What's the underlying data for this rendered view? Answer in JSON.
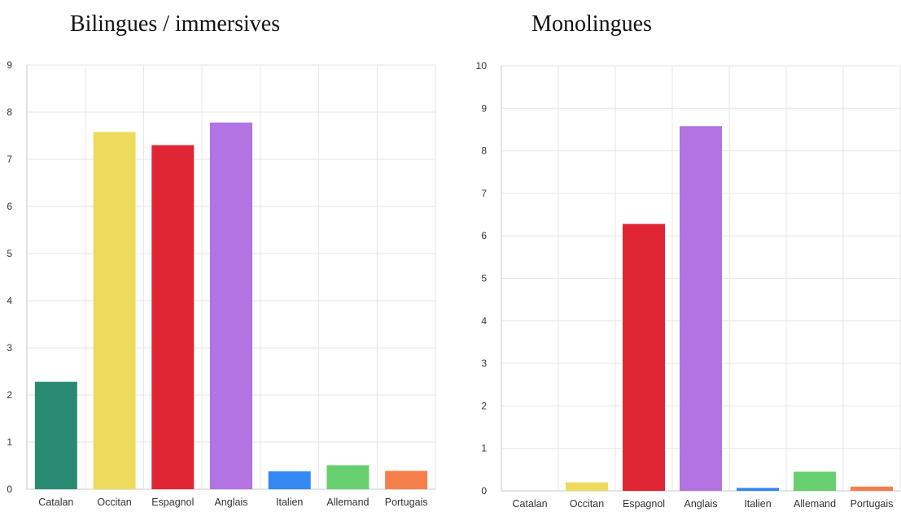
{
  "chart_data": [
    {
      "type": "bar",
      "title": "Bilingues / immersives",
      "categories": [
        "Catalan",
        "Occitan",
        "Espagnol",
        "Anglais",
        "Italien",
        "Allemand",
        "Portugais"
      ],
      "values": [
        2.28,
        7.58,
        7.3,
        7.78,
        0.38,
        0.51,
        0.39
      ],
      "colors": [
        "#2a8b73",
        "#eedb5e",
        "#e02534",
        "#b273e3",
        "#3388f1",
        "#68cf6e",
        "#f57f4a"
      ],
      "ylim": [
        0,
        9
      ],
      "yticks": [
        0,
        1,
        2,
        3,
        4,
        5,
        6,
        7,
        8,
        9
      ],
      "grid": true,
      "legend": "none"
    },
    {
      "type": "bar",
      "title": "Monolingues",
      "categories": [
        "Catalan",
        "Occitan",
        "Espagnol",
        "Anglais",
        "Italien",
        "Allemand",
        "Portugais"
      ],
      "values": [
        0,
        0.2,
        6.28,
        8.58,
        0.07,
        0.45,
        0.1
      ],
      "colors": [
        "#2a8b73",
        "#eedb5e",
        "#e02534",
        "#b273e3",
        "#3388f1",
        "#68cf6e",
        "#f57f4a"
      ],
      "ylim": [
        0,
        10
      ],
      "yticks": [
        0,
        1,
        2,
        3,
        4,
        5,
        6,
        7,
        8,
        9,
        10
      ],
      "grid": true,
      "legend": "none"
    }
  ]
}
